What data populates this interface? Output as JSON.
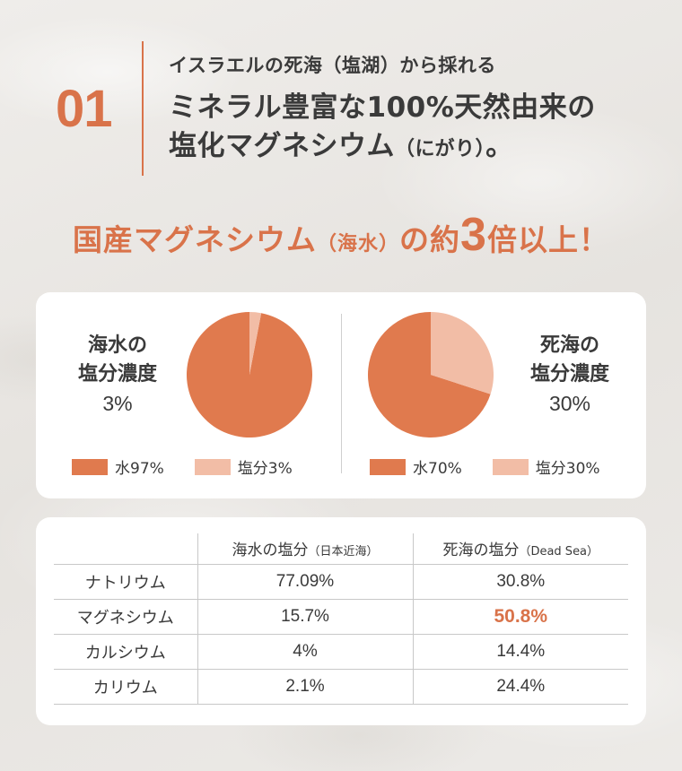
{
  "header": {
    "number": "01",
    "subtitle": "イスラエルの死海（塩湖）から採れる",
    "title_line1": "ミネラル豊富な100%天然由来の",
    "title_line2_main": "塩化マグネシウム",
    "title_line2_small": "（にがり）",
    "title_line2_end": "。"
  },
  "catch": {
    "part1": "国産マグネシウム",
    "part2_small": "（海水）",
    "part3": "の約",
    "part4_big": "3",
    "part5": "倍以上！"
  },
  "colors": {
    "accent": "#d9734a",
    "water": "#e07a4e",
    "salt": "#f2bda6"
  },
  "pies": [
    {
      "label_line1": "海水の",
      "label_line2": "塩分濃度",
      "label_pct": "3%",
      "water_value": 97,
      "salt_value": 3,
      "legend_water": "水97%",
      "legend_salt": "塩分3%"
    },
    {
      "label_line1": "死海の",
      "label_line2": "塩分濃度",
      "label_pct": "30%",
      "water_value": 70,
      "salt_value": 30,
      "legend_water": "水70%",
      "legend_salt": "塩分30%"
    }
  ],
  "table": {
    "headers": [
      {
        "main": "",
        "note": ""
      },
      {
        "main": "海水の塩分",
        "note": "（日本近海）"
      },
      {
        "main": "死海の塩分",
        "note": "（Dead Sea）"
      }
    ],
    "rows": [
      {
        "name": "ナトリウム",
        "sea": "77.09%",
        "dead": "30.8%"
      },
      {
        "name": "マグネシウム",
        "sea": "15.7%",
        "dead": "50.8%"
      },
      {
        "name": "カルシウム",
        "sea": "4%",
        "dead": "14.4%"
      },
      {
        "name": "カリウム",
        "sea": "2.1%",
        "dead": "24.4%"
      }
    ],
    "highlight_row": 1
  }
}
